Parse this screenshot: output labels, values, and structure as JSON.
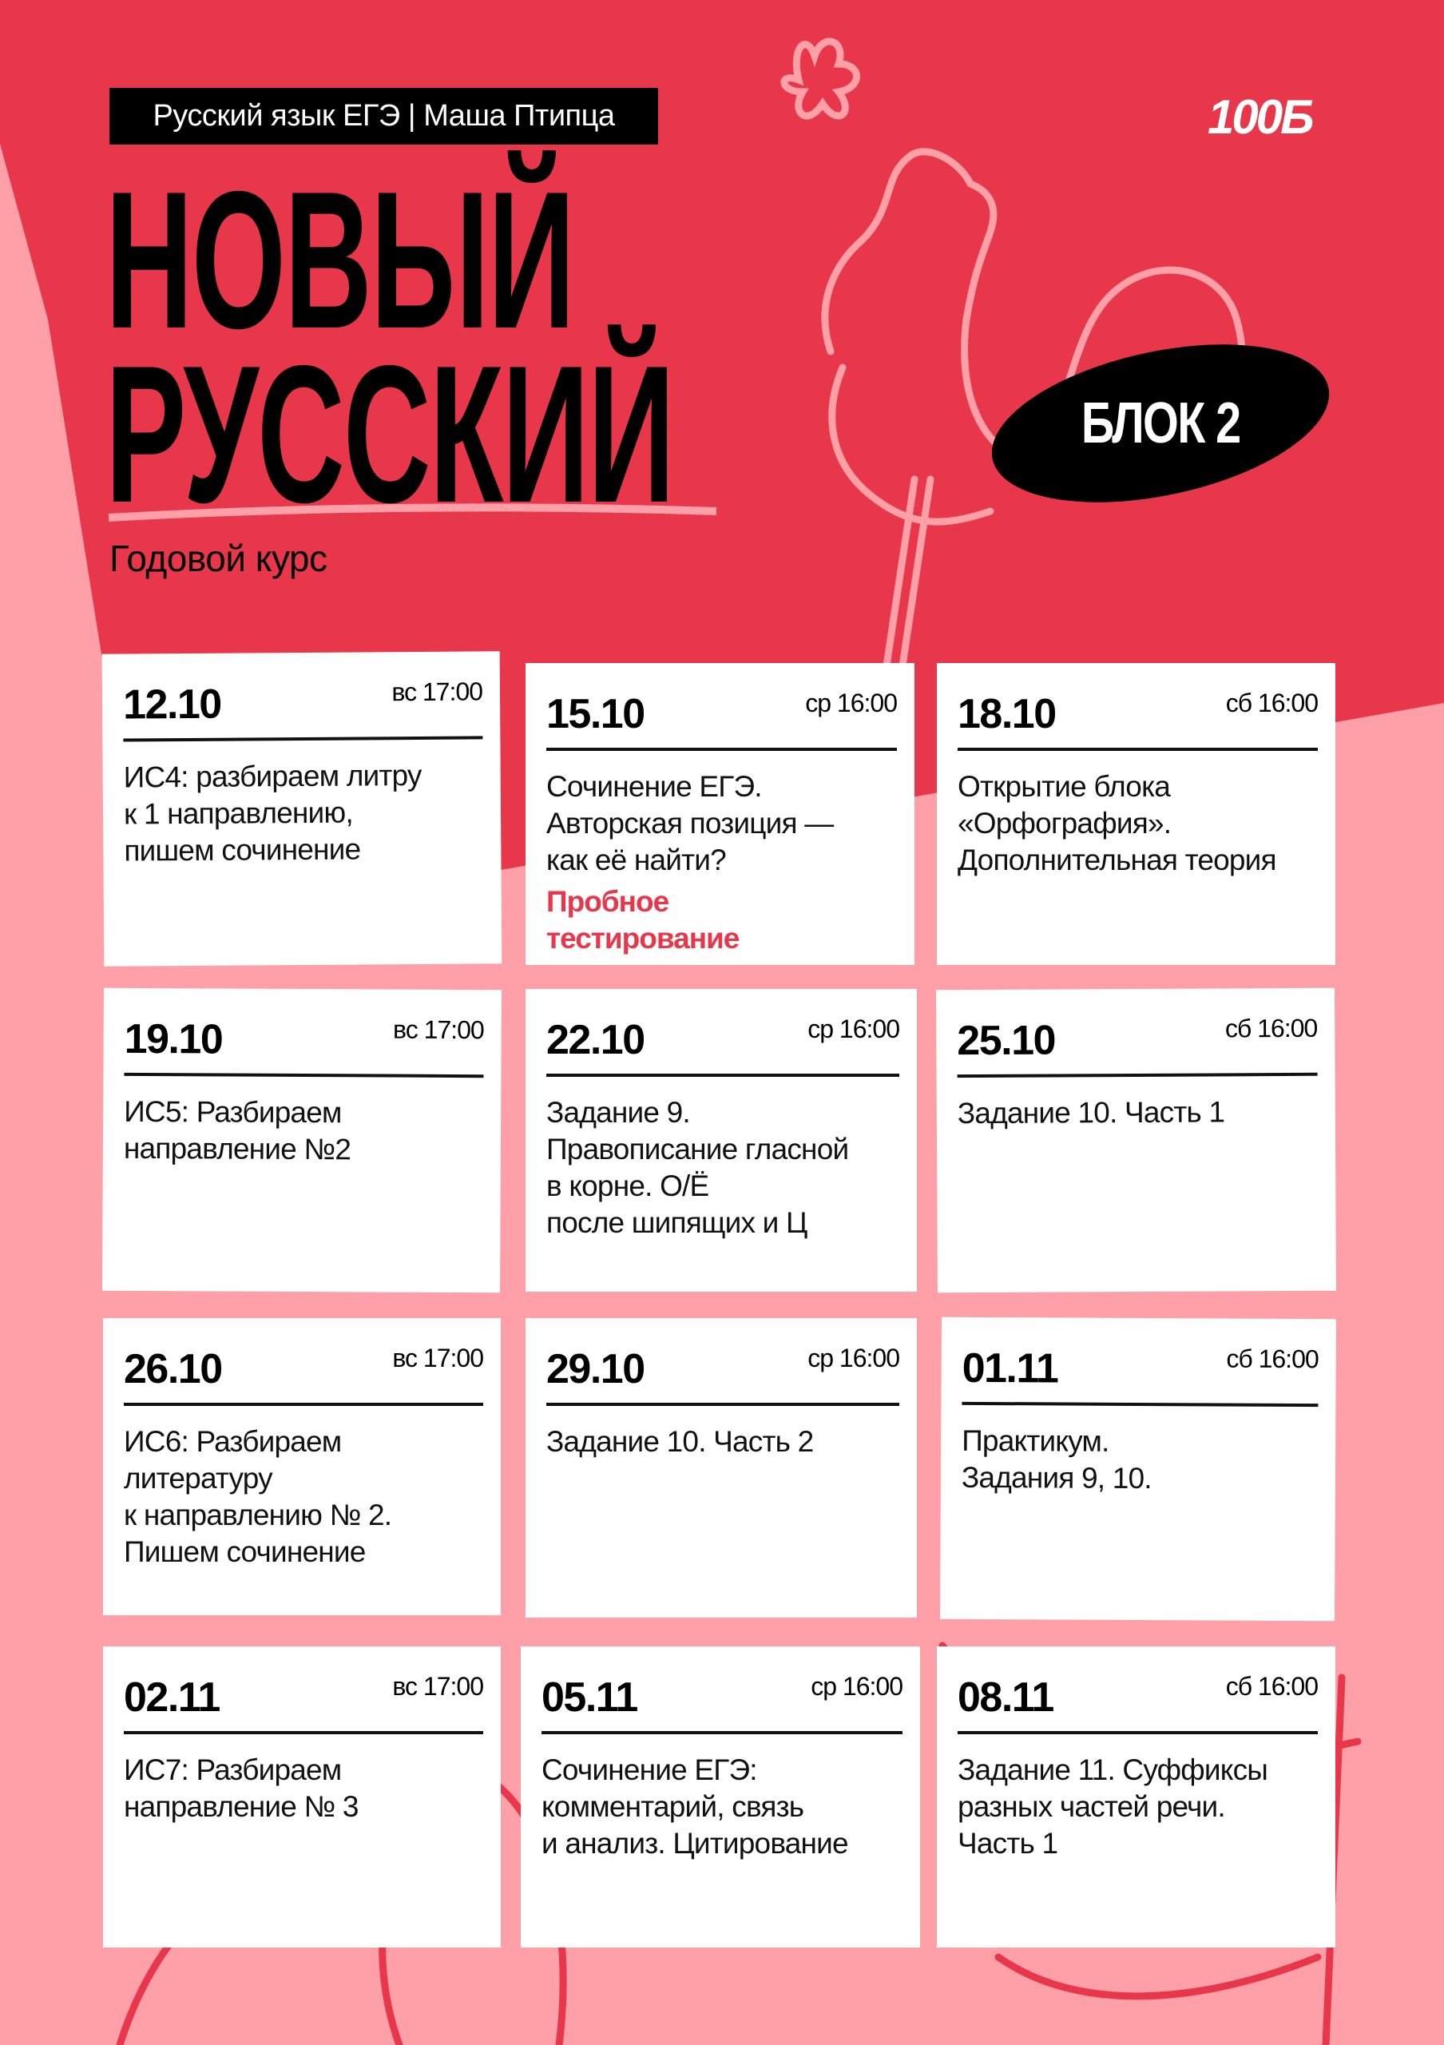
{
  "header": {
    "tag": "Русский язык ЕГЭ | Маша Птипца",
    "logo": "100Б",
    "title_line1": "НОВЫЙ",
    "title_line2": "РУССКИЙ",
    "subtitle": "Годовой курс",
    "block_badge": "БЛОК 2"
  },
  "colors": {
    "red": "#E8374A",
    "pink": "#FFA0A8",
    "black": "#000000",
    "white": "#FFFFFF"
  },
  "schedule": [
    {
      "date": "12.10",
      "time": "вс 17:00",
      "text": "ИС4: разбираем литру\nк 1 направлению,\nпишем сочинение"
    },
    {
      "date": "15.10",
      "time": "ср 16:00",
      "text": "Сочинение ЕГЭ.\nАвторская позиция —\nкак её найти?",
      "note": "Пробное\nтестирование"
    },
    {
      "date": "18.10",
      "time": "сб 16:00",
      "text": "Открытие блока\n«Орфография».\nДополнительная теория"
    },
    {
      "date": "19.10",
      "time": "вс 17:00",
      "text": "ИС5: Разбираем\nнаправление №2"
    },
    {
      "date": "22.10",
      "time": "ср 16:00",
      "text": "Задание 9.\nПравописание гласной\nв корне. О/Ё\nпосле шипящих и Ц"
    },
    {
      "date": "25.10",
      "time": "сб 16:00",
      "text": "Задание 10. Часть 1"
    },
    {
      "date": "26.10",
      "time": "вс 17:00",
      "text": "ИС6: Разбираем\nлитературу\nк направлению № 2.\nПишем сочинение"
    },
    {
      "date": "29.10",
      "time": "ср 16:00",
      "text": "Задание 10. Часть 2"
    },
    {
      "date": "01.11",
      "time": "сб 16:00",
      "text": "Практикум.\nЗадания 9, 10."
    },
    {
      "date": "02.11",
      "time": "вс 17:00",
      "text": "ИС7: Разбираем\nнаправление № 3"
    },
    {
      "date": "05.11",
      "time": "ср 16:00",
      "text": "Сочинение ЕГЭ:\nкомментарий, связь\nи анализ. Цитирование"
    },
    {
      "date": "08.11",
      "time": "сб 16:00",
      "text": "Задание 11. Суффиксы\nразных частей речи.\nЧасть 1"
    }
  ]
}
